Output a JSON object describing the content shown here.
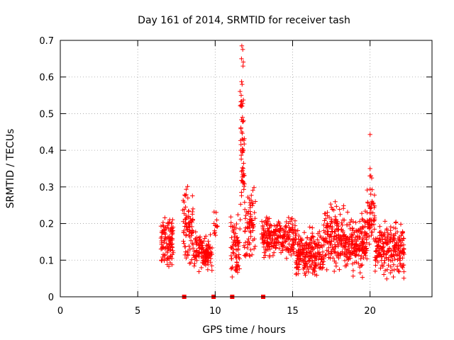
{
  "chart_data": {
    "type": "scatter",
    "title": "Day 161 of 2014, SRMTID for receiver tash",
    "xlabel": "GPS time / hours",
    "ylabel": "SRMTID / TECUs",
    "xlim": [
      0,
      24
    ],
    "ylim": [
      0,
      0.7
    ],
    "x_ticks": [
      0,
      5,
      10,
      15,
      20
    ],
    "x_tick_labels": [
      "0",
      "5",
      "10",
      "15",
      "20"
    ],
    "y_ticks": [
      0,
      0.1,
      0.2,
      0.3,
      0.4,
      0.5,
      0.6,
      0.7
    ],
    "y_tick_labels": [
      "0",
      "0.1",
      "0.2",
      "0.3",
      "0.4",
      "0.5",
      "0.6",
      "0.7"
    ],
    "grid": true,
    "marker": "plus",
    "series_color": "#ff0000",
    "zero_markers_x": [
      8.0,
      9.9,
      11.1,
      13.1
    ],
    "clusters": [
      {
        "x": [
          6.5,
          7.3
        ],
        "ylo": 0.06,
        "yhi": 0.24,
        "n": 110
      },
      {
        "x": [
          7.9,
          8.6
        ],
        "ylo": 0.05,
        "yhi": 0.33,
        "n": 85
      },
      {
        "x": [
          8.6,
          9.2
        ],
        "ylo": 0.06,
        "yhi": 0.2,
        "n": 55
      },
      {
        "x": [
          9.2,
          9.8
        ],
        "ylo": 0.05,
        "yhi": 0.18,
        "n": 75
      },
      {
        "x": [
          9.9,
          10.2
        ],
        "ylo": 0.15,
        "yhi": 0.24,
        "n": 12
      },
      {
        "x": [
          11.0,
          11.6
        ],
        "ylo": 0.03,
        "yhi": 0.25,
        "n": 70
      },
      {
        "x": [
          11.6,
          11.9
        ],
        "ylo": 0.1,
        "yhi": 0.69,
        "n": 55
      },
      {
        "x": [
          11.9,
          12.6
        ],
        "ylo": 0.05,
        "yhi": 0.32,
        "n": 75
      },
      {
        "x": [
          13.0,
          15.2
        ],
        "ylo": 0.08,
        "yhi": 0.24,
        "n": 240
      },
      {
        "x": [
          15.2,
          17.0
        ],
        "ylo": 0.03,
        "yhi": 0.2,
        "n": 220
      },
      {
        "x": [
          17.0,
          18.3
        ],
        "ylo": 0.05,
        "yhi": 0.28,
        "n": 150
      },
      {
        "x": [
          18.3,
          19.8
        ],
        "ylo": 0.04,
        "yhi": 0.25,
        "n": 190
      },
      {
        "x": [
          19.8,
          20.3
        ],
        "ylo": 0.1,
        "yhi": 0.35,
        "n": 60
      },
      {
        "x": [
          20.3,
          22.2
        ],
        "ylo": 0.04,
        "yhi": 0.22,
        "n": 220
      }
    ],
    "outliers": [
      {
        "x": 20.0,
        "y": 0.443
      },
      {
        "x": 11.72,
        "y": 0.685
      },
      {
        "x": 11.78,
        "y": 0.675
      },
      {
        "x": 11.7,
        "y": 0.65
      },
      {
        "x": 11.8,
        "y": 0.63
      },
      {
        "x": 11.74,
        "y": 0.58
      },
      {
        "x": 11.68,
        "y": 0.55
      },
      {
        "x": 11.7,
        "y": 0.52
      },
      {
        "x": 11.76,
        "y": 0.49
      },
      {
        "x": 11.72,
        "y": 0.45
      },
      {
        "x": 11.74,
        "y": 0.43
      },
      {
        "x": 11.66,
        "y": 0.4
      },
      {
        "x": 20.0,
        "y": 0.35
      },
      {
        "x": 20.05,
        "y": 0.33
      }
    ]
  }
}
